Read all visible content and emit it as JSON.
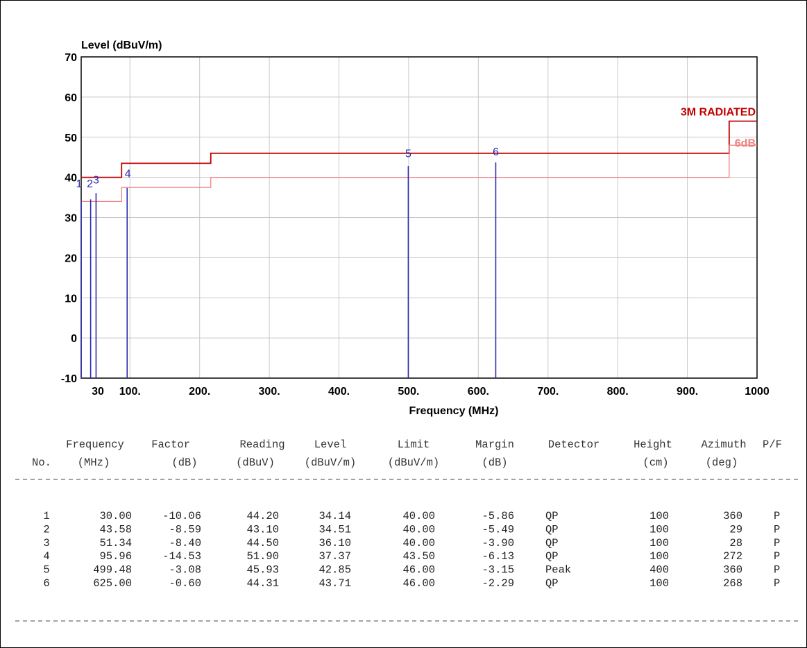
{
  "chart_data": {
    "type": "line",
    "title": "Level (dBuV/m)",
    "xlabel": "Frequency (MHz)",
    "ylabel": "Level (dBuV/m)",
    "xlim": [
      30,
      1000
    ],
    "ylim": [
      -10,
      70
    ],
    "grid": true,
    "x_tick_labels": [
      {
        "value": 30,
        "label": "30"
      },
      {
        "value": 100,
        "label": "100."
      },
      {
        "value": 200,
        "label": "200."
      },
      {
        "value": 300,
        "label": "300."
      },
      {
        "value": 400,
        "label": "400."
      },
      {
        "value": 500,
        "label": "500."
      },
      {
        "value": 600,
        "label": "600."
      },
      {
        "value": 700,
        "label": "700."
      },
      {
        "value": 800,
        "label": "800."
      },
      {
        "value": 900,
        "label": "900."
      },
      {
        "value": 1000,
        "label": "1000"
      }
    ],
    "y_tick_labels": [
      {
        "value": 70,
        "label": "70"
      },
      {
        "value": 60,
        "label": "60"
      },
      {
        "value": 50,
        "label": "50"
      },
      {
        "value": 40,
        "label": "40"
      },
      {
        "value": 30,
        "label": "30"
      },
      {
        "value": 20,
        "label": "20"
      },
      {
        "value": 10,
        "label": "10"
      },
      {
        "value": 0,
        "label": "0"
      },
      {
        "value": -10,
        "label": "-10"
      }
    ],
    "series": [
      {
        "name": "3M RADIATED",
        "color": "#c00000",
        "kind": "step",
        "x": [
          30,
          88,
          88,
          216,
          216,
          960,
          960,
          1000
        ],
        "y": [
          40,
          40,
          43.5,
          43.5,
          46,
          46,
          54,
          54
        ]
      },
      {
        "name": "6dB",
        "color": "#f08080",
        "kind": "step",
        "x": [
          30,
          88,
          88,
          216,
          216,
          960,
          960,
          1000
        ],
        "y": [
          34,
          34,
          37.5,
          37.5,
          40,
          40,
          48,
          48
        ]
      }
    ],
    "markers": [
      {
        "label": "1",
        "x": 30.0,
        "y": 34.14,
        "label_dx": -3,
        "label_y": 37.5
      },
      {
        "label": "2",
        "x": 43.58,
        "y": 34.51,
        "label_dx": -1,
        "label_y": 37.5
      },
      {
        "label": "3",
        "x": 51.34,
        "y": 36.1,
        "label_dx": 0,
        "label_y": 38.5
      },
      {
        "label": "4",
        "x": 95.96,
        "y": 37.37,
        "label_dx": 1,
        "label_y": 40.0
      },
      {
        "label": "5",
        "x": 499.48,
        "y": 42.85,
        "label_dx": 0,
        "label_y": 45.0
      },
      {
        "label": "6",
        "x": 625.0,
        "y": 43.71,
        "label_dx": 0,
        "label_y": 45.5
      }
    ],
    "marker_color": "#2a2ab0"
  },
  "table": {
    "header_line1": [
      "Frequency",
      "Factor",
      "Reading",
      "Level",
      "Limit",
      "Margin",
      "Detector",
      "Height",
      "Azimuth",
      "P/F"
    ],
    "header_line2": [
      "No.",
      "(MHz)",
      "(dB)",
      "(dBuV)",
      "(dBuV/m)",
      "(dBuV/m)",
      "(dB)",
      "",
      "(cm)",
      "(deg)"
    ],
    "rows": [
      [
        "1",
        "30.00",
        "-10.06",
        "44.20",
        "34.14",
        "40.00",
        "-5.86",
        "QP",
        "100",
        "360",
        "P"
      ],
      [
        "2",
        "43.58",
        "-8.59",
        "43.10",
        "34.51",
        "40.00",
        "-5.49",
        "QP",
        "100",
        "29",
        "P"
      ],
      [
        "3",
        "51.34",
        "-8.40",
        "44.50",
        "36.10",
        "40.00",
        "-3.90",
        "QP",
        "100",
        "28",
        "P"
      ],
      [
        "4",
        "95.96",
        "-14.53",
        "51.90",
        "37.37",
        "43.50",
        "-6.13",
        "QP",
        "100",
        "272",
        "P"
      ],
      [
        "5",
        "499.48",
        "-3.08",
        "45.93",
        "42.85",
        "46.00",
        "-3.15",
        "Peak",
        "400",
        "360",
        "P"
      ],
      [
        "6",
        "625.00",
        "-0.60",
        "44.31",
        "43.71",
        "46.00",
        "-2.29",
        "QP",
        "100",
        "268",
        "P"
      ]
    ]
  }
}
